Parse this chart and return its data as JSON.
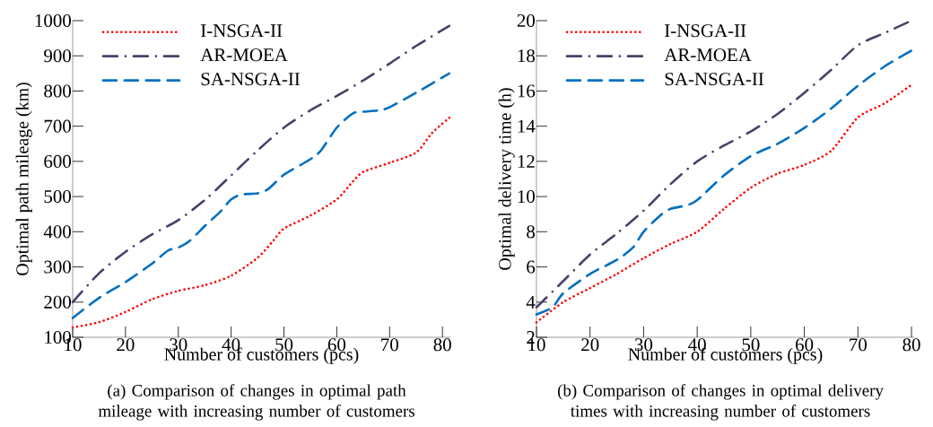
{
  "chart_data": [
    {
      "type": "line",
      "xlabel": "Number of customers (pcs)",
      "ylabel": "Optimal path mileage (km)",
      "xlim": [
        10,
        81.5
      ],
      "xticks": [
        10,
        20,
        30,
        40,
        50,
        60,
        70,
        80
      ],
      "ylim": [
        100,
        1000
      ],
      "yticks": [
        100,
        200,
        300,
        400,
        500,
        600,
        700,
        800,
        900,
        1000
      ],
      "legend": "top left",
      "annotations": [
        "(a) Comparison of changes in optimal path mileage with increasing number of customers"
      ],
      "series": [
        {
          "name": "I-NSGA-II",
          "color": "#ff0000",
          "line_style": "dotted",
          "x": [
            10,
            15,
            20,
            25,
            30,
            35,
            40,
            45,
            48,
            50,
            55,
            60,
            63,
            65,
            70,
            75,
            78,
            81.3
          ],
          "values": [
            128,
            143,
            172,
            208,
            232,
            248,
            275,
            326,
            375,
            409,
            446,
            492,
            542,
            570,
            596,
            625,
            680,
            724
          ]
        },
        {
          "name": "AR-MOEA",
          "color": "#4b3f6b",
          "line_style": "dashdot",
          "x": [
            10,
            15,
            20,
            25,
            30,
            35,
            40,
            45,
            50,
            55,
            60,
            65,
            70,
            75,
            81.3
          ],
          "values": [
            200,
            282,
            343,
            392,
            433,
            490,
            560,
            631,
            696,
            745,
            786,
            830,
            878,
            928,
            985
          ]
        },
        {
          "name": "SA-NSGA-II",
          "color": "#0070c0",
          "line_style": "dashed",
          "x": [
            10,
            15,
            20,
            25,
            28,
            30,
            32,
            35,
            38,
            40,
            42,
            45,
            47,
            50,
            55,
            57,
            60,
            63,
            65,
            68,
            70,
            75,
            81.3
          ],
          "values": [
            155,
            212,
            257,
            309,
            346,
            355,
            372,
            416,
            458,
            492,
            506,
            509,
            521,
            562,
            606,
            631,
            696,
            736,
            741,
            745,
            754,
            795,
            850
          ]
        }
      ]
    },
    {
      "type": "line",
      "xlabel": "Number of customers (pcs)",
      "ylabel": "Optimal delivery time (h)",
      "xlim": [
        10,
        80.5
      ],
      "xticks": [
        10,
        20,
        30,
        40,
        50,
        60,
        70,
        80
      ],
      "ylim": [
        2,
        20
      ],
      "yticks": [
        2,
        4,
        6,
        8,
        10,
        12,
        14,
        16,
        18,
        20
      ],
      "legend": "top left",
      "annotations": [
        "(b) Comparison of changes in optimal delivery times with increasing number of customers"
      ],
      "series": [
        {
          "name": "I-NSGA-II",
          "color": "#ff0000",
          "line_style": "dotted",
          "x": [
            10,
            15,
            20,
            25,
            30,
            35,
            40,
            45,
            50,
            55,
            60,
            65,
            70,
            75,
            80
          ],
          "values": [
            2.85,
            4.0,
            4.8,
            5.6,
            6.5,
            7.3,
            8.0,
            9.3,
            10.5,
            11.3,
            11.8,
            12.6,
            14.5,
            15.3,
            16.35
          ]
        },
        {
          "name": "AR-MOEA",
          "color": "#4b3f6b",
          "line_style": "dashdot",
          "x": [
            10,
            15,
            20,
            25,
            30,
            35,
            40,
            45,
            50,
            55,
            60,
            65,
            70,
            75,
            80
          ],
          "values": [
            3.7,
            5.2,
            6.7,
            7.9,
            9.2,
            10.7,
            12.0,
            12.9,
            13.7,
            14.7,
            15.9,
            17.2,
            18.6,
            19.3,
            20
          ]
        },
        {
          "name": "SA-NSGA-II",
          "color": "#0070c0",
          "line_style": "dashed",
          "x": [
            10,
            13,
            15,
            20,
            25,
            28,
            30,
            33,
            35,
            38,
            40,
            45,
            50,
            55,
            60,
            65,
            70,
            75,
            80
          ],
          "values": [
            3.3,
            3.7,
            4.5,
            5.6,
            6.4,
            7.1,
            8.0,
            8.9,
            9.3,
            9.5,
            9.8,
            11.2,
            12.3,
            13.0,
            13.9,
            15.0,
            16.3,
            17.4,
            18.3
          ]
        }
      ]
    }
  ]
}
